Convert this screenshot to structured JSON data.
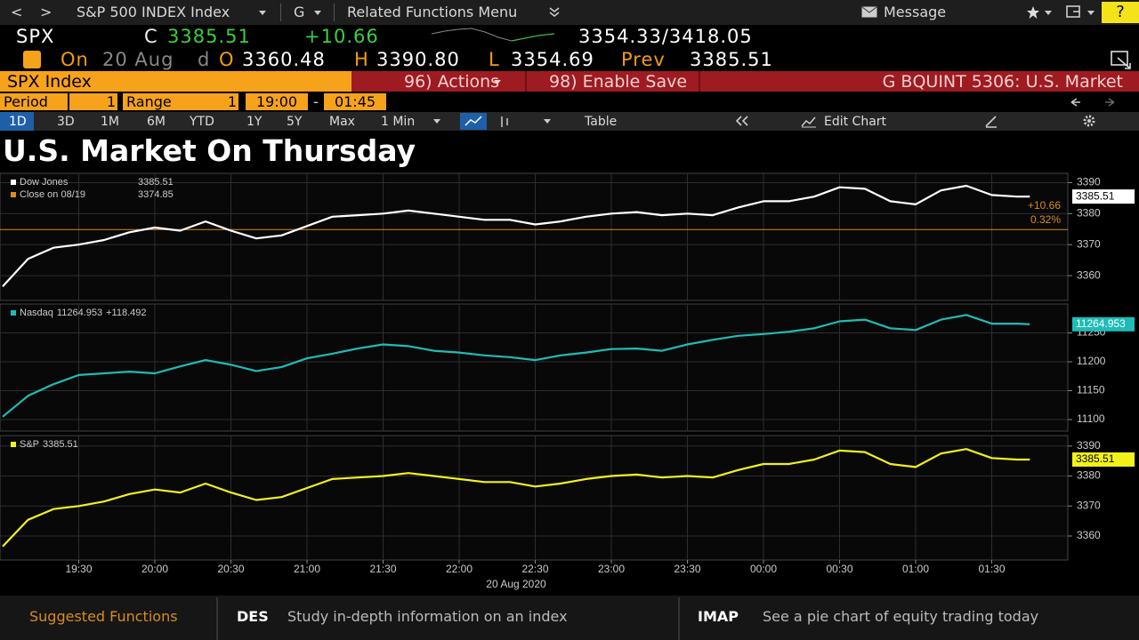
{
  "toolbar": {
    "back": "<",
    "forward": ">",
    "security": "S&P 500 INDEX Index",
    "g": "G",
    "related": "Related Functions Menu",
    "message": "Message",
    "help": "?"
  },
  "quote": {
    "ticker": "SPX",
    "c_label": "C",
    "last": "3385.51",
    "change": "+10.66",
    "range": "3354.33/3418.05",
    "on_label": "On",
    "date": "20 Aug",
    "d_label": "d",
    "o_label": "O",
    "open": "3360.48",
    "h_label": "H",
    "high": "3390.80",
    "l_label": "L",
    "low": "3354.69",
    "prev_label": "Prev",
    "prev": "3385.51"
  },
  "menu": {
    "security": "SPX Index",
    "actions": "96) Actions",
    "save": "98) Enable Save",
    "title": "G BQUINT 5306: U.S. Market"
  },
  "settings": {
    "period_label": "Period",
    "period": "1",
    "range_label": "Range",
    "range_value": "1",
    "start": "19:00",
    "separator": "-",
    "end": "01:45"
  },
  "tabs": [
    "1D",
    "3D",
    "1M",
    "6M",
    "YTD",
    "1Y",
    "5Y",
    "Max"
  ],
  "interval": "1 Min",
  "table": "Table",
  "edit_chart": "Edit Chart",
  "title": "U.S. Market On Thursday",
  "chart_data": [
    {
      "type": "line",
      "x": [
        "19:00",
        "19:10",
        "19:20",
        "19:30",
        "19:40",
        "19:50",
        "20:00",
        "20:10",
        "20:20",
        "20:30",
        "20:40",
        "20:50",
        "21:00",
        "21:10",
        "21:20",
        "21:30",
        "21:40",
        "21:50",
        "22:00",
        "22:10",
        "22:20",
        "22:30",
        "22:40",
        "22:50",
        "23:00",
        "23:10",
        "23:20",
        "23:30",
        "23:40",
        "23:50",
        "00:00",
        "00:10",
        "00:20",
        "00:30",
        "00:40",
        "00:50",
        "01:00",
        "01:10",
        "01:20",
        "01:30",
        "01:40",
        "01:45"
      ],
      "xlim": [
        "19:00",
        "02:00"
      ],
      "series": [
        {
          "name": "Dow Jones",
          "color": "#ffffff",
          "values": [
            3356.5,
            3365.4,
            3369,
            3370,
            3371.5,
            3374,
            3375.5,
            3374.5,
            3377.5,
            3374.5,
            3372,
            3373,
            3376,
            3379,
            3379.5,
            3380,
            3381,
            3380,
            3379,
            3378,
            3378,
            3376.5,
            3377.5,
            3379,
            3380,
            3380.5,
            3379.5,
            3380,
            3379.5,
            3382,
            3384,
            3384,
            3385.5,
            3388.5,
            3388,
            3384,
            3383,
            3387.5,
            3389,
            3386,
            3385.5,
            3385.51
          ]
        }
      ],
      "reference": {
        "name": "Close on 08/19",
        "value": 3374.85,
        "color": "#d98b1f"
      },
      "annotations": [
        "+10.66",
        "0.32%"
      ],
      "ylim": [
        3352,
        3393
      ],
      "yticks": [
        3360,
        3370,
        3380,
        3390
      ],
      "grid": true
    },
    {
      "type": "line",
      "x": [
        "19:00",
        "19:10",
        "19:20",
        "19:30",
        "19:40",
        "19:50",
        "20:00",
        "20:10",
        "20:20",
        "20:30",
        "20:40",
        "20:50",
        "21:00",
        "21:10",
        "21:20",
        "21:30",
        "21:40",
        "21:50",
        "22:00",
        "22:10",
        "22:20",
        "22:30",
        "22:40",
        "22:50",
        "23:00",
        "23:10",
        "23:20",
        "23:30",
        "23:40",
        "23:50",
        "00:00",
        "00:10",
        "00:20",
        "00:30",
        "00:40",
        "00:50",
        "01:00",
        "01:10",
        "01:20",
        "01:30",
        "01:40",
        "01:45"
      ],
      "xlim": [
        "19:00",
        "02:00"
      ],
      "series": [
        {
          "name": "Nasdaq",
          "color": "#1fbcb6",
          "change_label": "+118.492",
          "values": [
            11105,
            11141,
            11161,
            11177,
            11180,
            11183,
            11180,
            11192,
            11203,
            11195,
            11184,
            11191,
            11206,
            11214,
            11223,
            11230,
            11227,
            11219,
            11216,
            11211,
            11208,
            11203,
            11211,
            11216,
            11222,
            11223,
            11219,
            11230,
            11238,
            11245,
            11248,
            11252,
            11258,
            11270,
            11273,
            11258,
            11255,
            11273,
            11281,
            11266,
            11266,
            11264.953
          ]
        }
      ],
      "ylim": [
        11080,
        11300
      ],
      "yticks": [
        11100,
        11150,
        11200,
        11250
      ],
      "grid": true
    },
    {
      "type": "line",
      "x": [
        "19:00",
        "19:10",
        "19:20",
        "19:30",
        "19:40",
        "19:50",
        "20:00",
        "20:10",
        "20:20",
        "20:30",
        "20:40",
        "20:50",
        "21:00",
        "21:10",
        "21:20",
        "21:30",
        "21:40",
        "21:50",
        "22:00",
        "22:10",
        "22:20",
        "22:30",
        "22:40",
        "22:50",
        "23:00",
        "23:10",
        "23:20",
        "23:30",
        "23:40",
        "23:50",
        "00:00",
        "00:10",
        "00:20",
        "00:30",
        "00:40",
        "00:50",
        "01:00",
        "01:10",
        "01:20",
        "01:30",
        "01:40",
        "01:45"
      ],
      "xlim": [
        "19:00",
        "02:00"
      ],
      "xticks": [
        "19:30",
        "20:00",
        "20:30",
        "21:00",
        "21:30",
        "22:00",
        "22:30",
        "23:00",
        "23:30",
        "00:00",
        "00:30",
        "01:00",
        "01:30"
      ],
      "xlabel": "20 Aug 2020",
      "series": [
        {
          "name": "S&P",
          "color": "#f2f21a",
          "values": [
            3356.5,
            3365.4,
            3369,
            3370,
            3371.5,
            3374,
            3375.5,
            3374.5,
            3377.5,
            3374.5,
            3372,
            3373,
            3376,
            3379,
            3379.5,
            3380,
            3381,
            3380,
            3379,
            3378,
            3378,
            3376.5,
            3377.5,
            3379,
            3380,
            3380.5,
            3379.5,
            3380,
            3379.5,
            3382,
            3384,
            3384,
            3385.5,
            3388.5,
            3388,
            3384,
            3383,
            3387.5,
            3389,
            3386,
            3385.5,
            3385.51
          ]
        }
      ],
      "ylim": [
        3352,
        3393.5
      ],
      "yticks": [
        3360,
        3370,
        3380,
        3390
      ],
      "grid": true
    }
  ],
  "footer": {
    "suggested": "Suggested Functions",
    "items": [
      {
        "code": "DES",
        "text": "Study in-depth information on an index"
      },
      {
        "code": "IMAP",
        "text": "See a pie chart of equity trading today"
      }
    ]
  }
}
